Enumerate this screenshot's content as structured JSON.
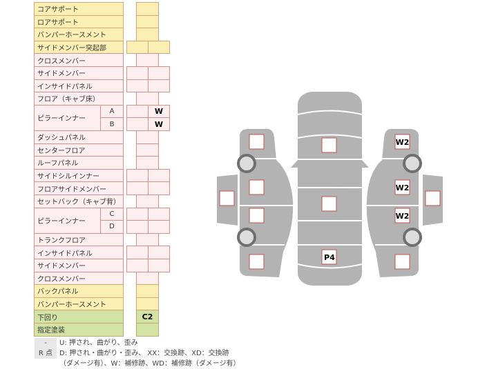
{
  "table": {
    "rows": [
      {
        "label": "コアサポート",
        "color": "y",
        "type": "single",
        "values": [
          ""
        ]
      },
      {
        "label": "ロアサポート",
        "color": "y",
        "type": "single",
        "values": [
          ""
        ]
      },
      {
        "label": "バンパーホースメント",
        "color": "y",
        "type": "single",
        "values": [
          ""
        ]
      },
      {
        "label": "サイドメンバー突起部",
        "color": "y",
        "type": "double",
        "values": [
          "",
          ""
        ]
      },
      {
        "label": "クロスメンバー",
        "color": "p",
        "type": "single",
        "values": [
          ""
        ]
      },
      {
        "label": "サイドメンバー",
        "color": "p",
        "type": "double",
        "values": [
          "",
          ""
        ]
      },
      {
        "label": "インサイドパネル",
        "color": "p",
        "type": "double",
        "values": [
          "",
          ""
        ]
      },
      {
        "label": "フロア（キャブ床）",
        "color": "p",
        "type": "single",
        "values": [
          ""
        ]
      },
      {
        "label": "ピラーインナー",
        "color": "p",
        "type": "double",
        "group": "AB",
        "sub": "A",
        "values": [
          "",
          "W"
        ]
      },
      {
        "label": "",
        "color": "p",
        "type": "double",
        "group": "AB",
        "sub": "B",
        "values": [
          "",
          "W"
        ]
      },
      {
        "label": "ダッシュパネル",
        "color": "p",
        "type": "single",
        "values": [
          ""
        ]
      },
      {
        "label": "センターフロア",
        "color": "p",
        "type": "single",
        "values": [
          ""
        ]
      },
      {
        "label": "ルーフパネル",
        "color": "p",
        "type": "single",
        "values": [
          ""
        ]
      },
      {
        "label": "サイドシルインナー",
        "color": "p",
        "type": "double",
        "values": [
          "",
          ""
        ]
      },
      {
        "label": "フロアサイドメンバー",
        "color": "p",
        "type": "double",
        "values": [
          "",
          ""
        ]
      },
      {
        "label": "セットバック（キャブ背）",
        "color": "p",
        "type": "single",
        "values": [
          ""
        ]
      },
      {
        "label": "ピラーインナー",
        "color": "p",
        "type": "double",
        "group": "CD",
        "sub": "C",
        "values": [
          "",
          ""
        ]
      },
      {
        "label": "",
        "color": "p",
        "type": "double",
        "group": "CD",
        "sub": "D",
        "values": [
          "",
          ""
        ]
      },
      {
        "label": "トランクフロア",
        "color": "p",
        "type": "single",
        "values": [
          ""
        ]
      },
      {
        "label": "インサイドパネル",
        "color": "p",
        "type": "double",
        "values": [
          "",
          ""
        ]
      },
      {
        "label": "サイドメンバー",
        "color": "p",
        "type": "double",
        "values": [
          "",
          ""
        ]
      },
      {
        "label": "クロスメンバー",
        "color": "p",
        "type": "single",
        "values": [
          ""
        ]
      },
      {
        "label": "バックパネル",
        "color": "y",
        "type": "single",
        "values": [
          ""
        ]
      },
      {
        "label": "バンパーホースメント",
        "color": "y",
        "type": "single",
        "values": [
          ""
        ]
      },
      {
        "label": "下回り",
        "color": "g",
        "type": "single",
        "values": [
          "C2"
        ]
      },
      {
        "label": "指定塗装",
        "color": "g",
        "type": "single",
        "values": [
          ""
        ]
      }
    ]
  },
  "diagram": {
    "left_front": "",
    "left_front_door": "",
    "left_rear_door": "",
    "left_rear": "",
    "left_side_panel": "",
    "center_front": "",
    "center_mid": "",
    "center_rear": "P4",
    "right_front": "W2",
    "right_front_door": "W2",
    "right_rear_door": "W2",
    "right_rear": "",
    "right_side_panel": ""
  },
  "legend": {
    "key1": "-",
    "text1": "U: 押され、曲がり、歪み",
    "key2": "R 点",
    "text2": "D: 押され・曲がり・歪み、 XX：交換跡、XD：交換跡",
    "text3": "（ダメージ有）、W：補修跡、WD：補修跡（ダメージ有）"
  },
  "colors": {
    "yellow": "#fcefb4",
    "pink": "#fdeef0",
    "green": "#d3e3a6",
    "body": "#b3b3b3",
    "box_border": "#c0504d"
  }
}
